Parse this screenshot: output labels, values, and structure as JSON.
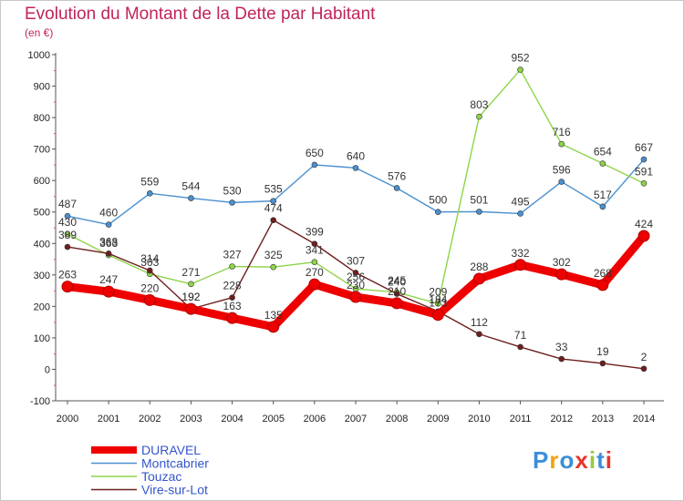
{
  "header": {
    "title": "Evolution du Montant de la Dette par Habitant",
    "subtitle": "(en €)"
  },
  "logo": {
    "text": "Proxiti",
    "colors": [
      "#3b8fd9",
      "#f2a20c",
      "#3b8fd9",
      "#e8352b",
      "#9ac93e",
      "#3b8fd9",
      "#e8352b"
    ]
  },
  "chart_data": {
    "type": "line",
    "title": "Evolution du Montant de la Dette par Habitant",
    "ylabel": "(en €)",
    "xlabel": "",
    "x": [
      "2000",
      "2001",
      "2002",
      "2003",
      "2004",
      "2005",
      "2006",
      "2007",
      "2008",
      "2009",
      "2010",
      "2011",
      "2012",
      "2013",
      "2014"
    ],
    "ylim": [
      -100,
      1000
    ],
    "yticks": [
      -100,
      0,
      100,
      200,
      300,
      400,
      500,
      600,
      700,
      800,
      900,
      1000
    ],
    "grid": false,
    "legend_position": "bottom-left",
    "series": [
      {
        "name": "Montcabrier",
        "color": "#4a90d0",
        "values": [
          487,
          460,
          559,
          544,
          530,
          535,
          650,
          640,
          576,
          500,
          501,
          495,
          596,
          517,
          667
        ]
      },
      {
        "name": "Touzac",
        "color": "#8ed44a",
        "values": [
          430,
          363,
          303,
          271,
          327,
          325,
          341,
          256,
          245,
          209,
          803,
          952,
          716,
          654,
          591
        ]
      },
      {
        "name": "Vire-sur-Lot",
        "color": "#6e1e1e",
        "values": [
          389,
          368,
          314,
          192,
          228,
          474,
          399,
          307,
          240,
          184,
          112,
          71,
          33,
          19,
          2
        ]
      },
      {
        "name": "DURAVEL",
        "color": "#ee0000",
        "values": [
          263,
          247,
          220,
          192,
          163,
          135,
          270,
          230,
          210,
          173,
          288,
          332,
          302,
          268,
          424
        ]
      }
    ]
  }
}
